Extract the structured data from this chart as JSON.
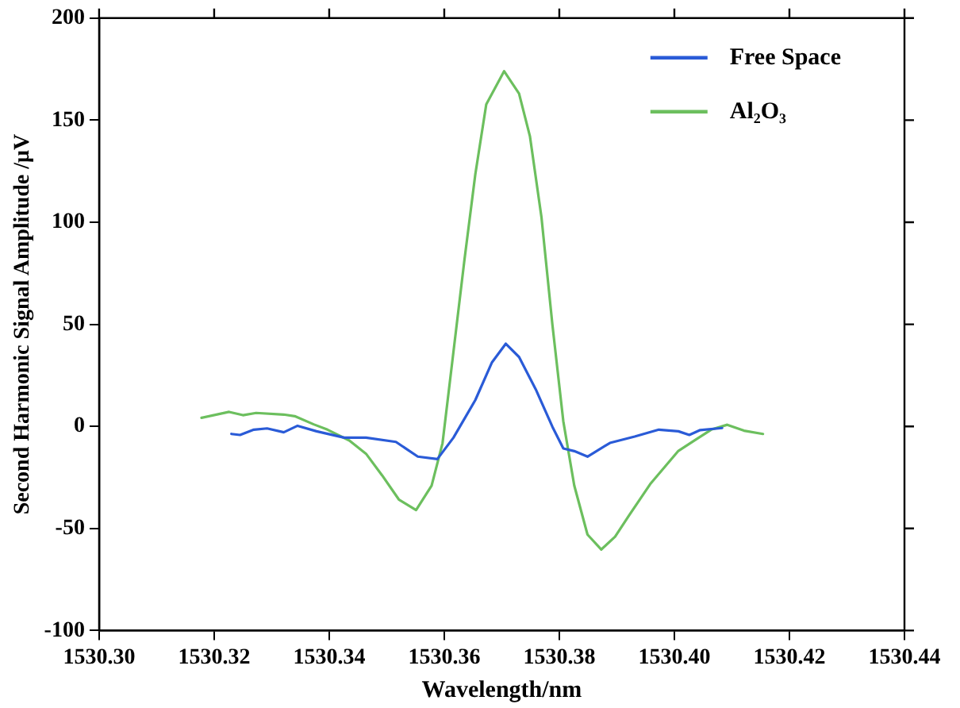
{
  "chart_data": {
    "type": "line",
    "xlabel": "Wavelength/nm",
    "ylabel": "Second Harmonic Signal Amplitude /μV",
    "xlim": [
      1530.3,
      1530.44
    ],
    "xticks": [
      {
        "value": 1530.3,
        "label": "1530.30"
      },
      {
        "value": 1530.32,
        "label": "1530.32"
      },
      {
        "value": 1530.34,
        "label": "1530.34"
      },
      {
        "value": 1530.36,
        "label": "1530.36"
      },
      {
        "value": 1530.38,
        "label": "1530.38"
      },
      {
        "value": 1530.4,
        "label": "1530.40"
      },
      {
        "value": 1530.42,
        "label": "1530.42"
      },
      {
        "value": 1530.44,
        "label": "1530.44"
      }
    ],
    "ylim": [
      -100,
      200
    ],
    "yticks": [
      -100,
      -50,
      0,
      50,
      100,
      150,
      200
    ],
    "grid": false,
    "legend": "top right",
    "marker": "none",
    "line_style": "solid",
    "series": [
      {
        "name": "Free Space",
        "color": "#2a5bd7",
        "x": [
          1530.323,
          1530.3245,
          1530.3269,
          1530.3292,
          1530.3321,
          1530.3345,
          1530.3378,
          1530.3426,
          1530.3464,
          1530.3516,
          1530.3554,
          1530.3588,
          1530.3616,
          1530.3654,
          1530.3683,
          1530.3707,
          1530.373,
          1530.3759,
          1530.3788,
          1530.3807,
          1530.3826,
          1530.3849,
          1530.3888,
          1530.3931,
          1530.3973,
          1530.4007,
          1530.4026,
          1530.4045,
          1530.4083
        ],
        "values": [
          -3.7,
          -4.2,
          -1.6,
          -1.0,
          -2.9,
          0.3,
          -2.4,
          -5.5,
          -5.5,
          -7.6,
          -14.8,
          -16.0,
          -5.5,
          12.9,
          31.4,
          40.5,
          34.0,
          18.2,
          -0.2,
          -10.8,
          -12.1,
          -14.8,
          -8.1,
          -5.0,
          -1.6,
          -2.4,
          -4.2,
          -1.8,
          -0.8
        ]
      },
      {
        "name": "Al₂O₃",
        "color": "#6cbf5e",
        "x": [
          1530.3178,
          1530.3226,
          1530.325,
          1530.3273,
          1530.3321,
          1530.334,
          1530.3373,
          1530.3397,
          1530.3435,
          1530.3464,
          1530.3492,
          1530.3521,
          1530.3551,
          1530.3578,
          1530.3597,
          1530.3616,
          1530.3635,
          1530.3654,
          1530.3673,
          1530.3704,
          1530.373,
          1530.3749,
          1530.3769,
          1530.3788,
          1530.3807,
          1530.3826,
          1530.3849,
          1530.3873,
          1530.3897,
          1530.3921,
          1530.3959,
          1530.4007,
          1530.4035,
          1530.4064,
          1530.4092,
          1530.4121,
          1530.4154
        ],
        "values": [
          4.2,
          7.1,
          5.5,
          6.6,
          5.8,
          5.0,
          1.0,
          -1.6,
          -6.9,
          -13.4,
          -24.0,
          -35.8,
          -41.0,
          -29.0,
          -8.2,
          36.6,
          81.4,
          123.5,
          157.7,
          174.0,
          163.0,
          142.0,
          102.4,
          49.8,
          2.4,
          -29.0,
          -53.0,
          -60.3,
          -54.0,
          -43.7,
          -27.9,
          -12.0,
          -6.9,
          -1.6,
          0.8,
          -2.1,
          -3.7
        ]
      }
    ]
  }
}
